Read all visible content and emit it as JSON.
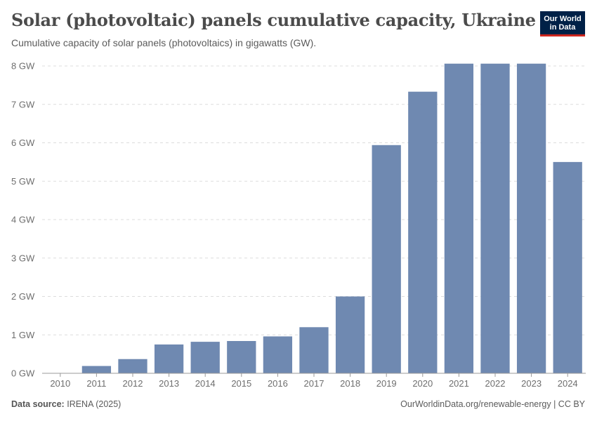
{
  "header": {
    "title": "Solar (photovoltaic) panels cumulative capacity, Ukraine",
    "subtitle": "Cumulative capacity of solar panels (photovoltaics) in gigawatts (GW).",
    "logo_line1": "Our World",
    "logo_line2": "in Data"
  },
  "footer": {
    "source_label": "Data source:",
    "source_value": "IRENA (2025)",
    "url": "OurWorldinData.org/renewable-energy | CC BY"
  },
  "colors": {
    "bar": "#6f89b1",
    "grid": "#dddddd",
    "axis_text": "#6e6e6e",
    "axis_line": "#999999"
  },
  "chart_data": {
    "type": "bar",
    "title": "Solar (photovoltaic) panels cumulative capacity, Ukraine",
    "xlabel": "",
    "ylabel": "",
    "unit_suffix": " GW",
    "ylim": [
      0,
      8
    ],
    "yticks": [
      0,
      1,
      2,
      3,
      4,
      5,
      6,
      7,
      8
    ],
    "ytick_labels": [
      "0 GW",
      "1 GW",
      "2 GW",
      "3 GW",
      "4 GW",
      "5 GW",
      "6 GW",
      "7 GW",
      "8 GW"
    ],
    "grid": true,
    "categories": [
      "2010",
      "2011",
      "2012",
      "2013",
      "2014",
      "2015",
      "2016",
      "2017",
      "2018",
      "2019",
      "2020",
      "2021",
      "2022",
      "2023",
      "2024"
    ],
    "values": [
      0.003,
      0.19,
      0.37,
      0.75,
      0.82,
      0.84,
      0.96,
      1.2,
      2.0,
      5.94,
      7.33,
      8.06,
      8.06,
      8.06,
      5.5
    ]
  }
}
